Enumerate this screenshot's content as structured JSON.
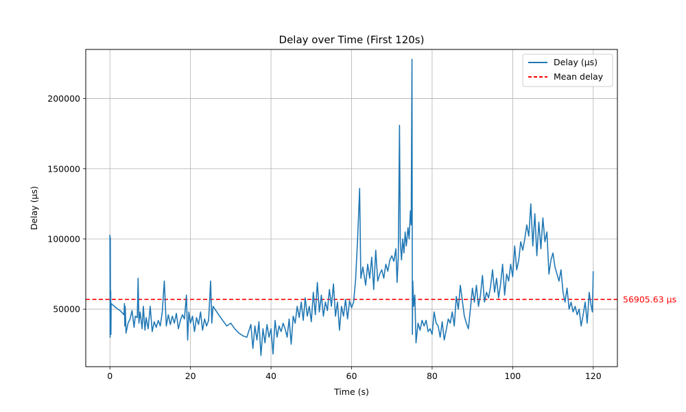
{
  "chart_data": {
    "type": "line",
    "title": "Delay over Time (First 120s)",
    "xlabel": "Time (s)",
    "ylabel": "Delay (µs)",
    "xlim": [
      -6,
      126
    ],
    "ylim": [
      9000,
      235000
    ],
    "x_ticks": [
      0,
      20,
      40,
      60,
      80,
      100,
      120
    ],
    "y_ticks": [
      50000,
      100000,
      150000,
      200000
    ],
    "grid": true,
    "legend": {
      "placement": "top-right",
      "entries": [
        "Delay (µs)",
        "Mean delay"
      ]
    },
    "colors": {
      "series": "#1f77b4",
      "mean": "#ff0000",
      "grid": "#b0b0b0"
    },
    "mean": {
      "value": 56905.63,
      "label": "56905.63 µs"
    },
    "series": [
      {
        "name": "Delay (µs)",
        "points": [
          [
            0.0,
            103000
          ],
          [
            0.05,
            30000
          ],
          [
            0.1,
            101000
          ],
          [
            0.15,
            35000
          ],
          [
            0.2,
            63000
          ],
          [
            0.25,
            32000
          ],
          [
            0.3,
            54000
          ],
          [
            1.5,
            51000
          ],
          [
            2.5,
            49000
          ],
          [
            3.5,
            46000
          ],
          [
            3.6,
            54000
          ],
          [
            3.7,
            38000
          ],
          [
            3.8,
            52000
          ],
          [
            4.0,
            33000
          ],
          [
            4.5,
            40000
          ],
          [
            5.0,
            43000
          ],
          [
            5.5,
            49000
          ],
          [
            6.0,
            37000
          ],
          [
            6.3,
            45000
          ],
          [
            6.8,
            44000
          ],
          [
            7.0,
            72000
          ],
          [
            7.2,
            40000
          ],
          [
            7.5,
            48000
          ],
          [
            8.0,
            36000
          ],
          [
            8.3,
            52000
          ],
          [
            8.7,
            35000
          ],
          [
            9.0,
            44000
          ],
          [
            9.5,
            36000
          ],
          [
            10.0,
            52000
          ],
          [
            10.5,
            34000
          ],
          [
            11.0,
            41000
          ],
          [
            11.5,
            37000
          ],
          [
            12.0,
            42000
          ],
          [
            12.5,
            38000
          ],
          [
            13.0,
            48000
          ],
          [
            13.5,
            70000
          ],
          [
            14.0,
            38000
          ],
          [
            14.5,
            46000
          ],
          [
            15.0,
            39000
          ],
          [
            15.5,
            45000
          ],
          [
            16.0,
            40000
          ],
          [
            16.5,
            47000
          ],
          [
            17.0,
            36000
          ],
          [
            17.5,
            42000
          ],
          [
            18.0,
            46000
          ],
          [
            18.5,
            43000
          ],
          [
            19.0,
            60000
          ],
          [
            19.3,
            28000
          ],
          [
            19.6,
            48000
          ],
          [
            20.0,
            40000
          ],
          [
            20.5,
            45000
          ],
          [
            21.0,
            34000
          ],
          [
            21.5,
            44000
          ],
          [
            22.0,
            39000
          ],
          [
            22.5,
            48000
          ],
          [
            23.0,
            35000
          ],
          [
            23.5,
            43000
          ],
          [
            24.0,
            38000
          ],
          [
            24.5,
            42000
          ],
          [
            25.0,
            70000
          ],
          [
            25.3,
            40000
          ],
          [
            25.6,
            52000
          ],
          [
            27.0,
            46000
          ],
          [
            28.0,
            42000
          ],
          [
            29.0,
            38000
          ],
          [
            30.0,
            40000
          ],
          [
            31.0,
            36000
          ],
          [
            32.0,
            33000
          ],
          [
            33.0,
            31000
          ],
          [
            34.0,
            30000
          ],
          [
            35.0,
            39000
          ],
          [
            35.5,
            22000
          ],
          [
            36.0,
            38000
          ],
          [
            36.5,
            28000
          ],
          [
            37.0,
            41000
          ],
          [
            37.5,
            17000
          ],
          [
            38.0,
            36000
          ],
          [
            38.5,
            26000
          ],
          [
            39.0,
            39000
          ],
          [
            39.5,
            30000
          ],
          [
            40.0,
            36000
          ],
          [
            40.5,
            18000
          ],
          [
            41.0,
            42000
          ],
          [
            41.5,
            30000
          ],
          [
            42.0,
            38000
          ],
          [
            42.5,
            34000
          ],
          [
            43.0,
            40000
          ],
          [
            43.5,
            36000
          ],
          [
            44.0,
            30000
          ],
          [
            44.5,
            43000
          ],
          [
            45.0,
            25000
          ],
          [
            45.5,
            45000
          ],
          [
            46.0,
            40000
          ],
          [
            46.5,
            52000
          ],
          [
            47.0,
            44000
          ],
          [
            47.5,
            55000
          ],
          [
            48.0,
            42000
          ],
          [
            48.5,
            58000
          ],
          [
            49.0,
            45000
          ],
          [
            49.5,
            52000
          ],
          [
            50.0,
            41000
          ],
          [
            50.5,
            62000
          ],
          [
            51.0,
            46000
          ],
          [
            51.5,
            69000
          ],
          [
            52.0,
            48000
          ],
          [
            52.5,
            60000
          ],
          [
            53.0,
            45000
          ],
          [
            53.5,
            55000
          ],
          [
            54.0,
            49000
          ],
          [
            54.5,
            64000
          ],
          [
            55.0,
            52000
          ],
          [
            55.5,
            68000
          ],
          [
            56.0,
            45000
          ],
          [
            56.5,
            55000
          ],
          [
            57.0,
            35000
          ],
          [
            57.5,
            52000
          ],
          [
            58.0,
            45000
          ],
          [
            58.5,
            57000
          ],
          [
            59.0,
            43000
          ],
          [
            59.5,
            56000
          ],
          [
            60.0,
            51000
          ],
          [
            60.5,
            55000
          ],
          [
            61.0,
            71000
          ],
          [
            61.5,
            100000
          ],
          [
            62.0,
            136000
          ],
          [
            62.3,
            72000
          ],
          [
            62.8,
            80000
          ],
          [
            63.5,
            67000
          ],
          [
            64.0,
            82000
          ],
          [
            64.5,
            72000
          ],
          [
            65.0,
            87000
          ],
          [
            65.5,
            64000
          ],
          [
            66.0,
            92000
          ],
          [
            66.5,
            70000
          ],
          [
            67.0,
            75000
          ],
          [
            67.5,
            78000
          ],
          [
            68.0,
            72000
          ],
          [
            68.5,
            82000
          ],
          [
            69.0,
            77000
          ],
          [
            69.5,
            85000
          ],
          [
            70.0,
            88000
          ],
          [
            70.5,
            84000
          ],
          [
            71.0,
            93000
          ],
          [
            71.3,
            69000
          ],
          [
            71.6,
            87000
          ],
          [
            71.9,
            181000
          ],
          [
            72.1,
            98000
          ],
          [
            72.4,
            85000
          ],
          [
            72.7,
            100000
          ],
          [
            73.0,
            90000
          ],
          [
            73.3,
            105000
          ],
          [
            73.6,
            95000
          ],
          [
            74.0,
            108000
          ],
          [
            74.3,
            100000
          ],
          [
            74.6,
            120000
          ],
          [
            74.8,
            110000
          ],
          [
            75.0,
            228000
          ],
          [
            75.1,
            32000
          ],
          [
            75.2,
            70000
          ],
          [
            75.4,
            52000
          ],
          [
            75.7,
            60000
          ],
          [
            76.0,
            26000
          ],
          [
            76.5,
            40000
          ],
          [
            77.0,
            35000
          ],
          [
            77.5,
            42000
          ],
          [
            78.0,
            38000
          ],
          [
            78.5,
            42000
          ],
          [
            79.0,
            34000
          ],
          [
            79.5,
            36000
          ],
          [
            80.0,
            32000
          ],
          [
            80.5,
            48000
          ],
          [
            81.0,
            40000
          ],
          [
            81.5,
            38000
          ],
          [
            82.0,
            30000
          ],
          [
            82.5,
            41000
          ],
          [
            83.0,
            28000
          ],
          [
            83.5,
            35000
          ],
          [
            84.0,
            43000
          ],
          [
            84.5,
            40000
          ],
          [
            85.0,
            48000
          ],
          [
            85.5,
            38000
          ],
          [
            86.0,
            59000
          ],
          [
            86.5,
            50000
          ],
          [
            87.0,
            67000
          ],
          [
            87.5,
            56000
          ],
          [
            88.0,
            45000
          ],
          [
            88.5,
            40000
          ],
          [
            89.0,
            36000
          ],
          [
            89.5,
            50000
          ],
          [
            90.0,
            65000
          ],
          [
            90.5,
            55000
          ],
          [
            91.0,
            67000
          ],
          [
            91.5,
            52000
          ],
          [
            92.0,
            60000
          ],
          [
            92.5,
            74000
          ],
          [
            93.0,
            55000
          ],
          [
            93.5,
            62000
          ],
          [
            94.0,
            58000
          ],
          [
            94.5,
            66000
          ],
          [
            95.0,
            78000
          ],
          [
            95.5,
            62000
          ],
          [
            96.0,
            72000
          ],
          [
            96.5,
            58000
          ],
          [
            97.0,
            68000
          ],
          [
            97.5,
            82000
          ],
          [
            98.0,
            60000
          ],
          [
            98.5,
            75000
          ],
          [
            99.0,
            70000
          ],
          [
            99.5,
            82000
          ],
          [
            100.0,
            73000
          ],
          [
            100.5,
            95000
          ],
          [
            101.0,
            78000
          ],
          [
            101.5,
            85000
          ],
          [
            102.0,
            98000
          ],
          [
            102.5,
            92000
          ],
          [
            103.0,
            100000
          ],
          [
            103.5,
            110000
          ],
          [
            104.0,
            102000
          ],
          [
            104.5,
            125000
          ],
          [
            105.0,
            95000
          ],
          [
            105.5,
            118000
          ],
          [
            106.0,
            88000
          ],
          [
            106.5,
            112000
          ],
          [
            107.0,
            93000
          ],
          [
            107.5,
            115000
          ],
          [
            108.0,
            98000
          ],
          [
            108.5,
            105000
          ],
          [
            109.0,
            75000
          ],
          [
            109.5,
            85000
          ],
          [
            110.0,
            90000
          ],
          [
            110.5,
            80000
          ],
          [
            111.0,
            75000
          ],
          [
            111.5,
            70000
          ],
          [
            112.0,
            78000
          ],
          [
            112.5,
            62000
          ],
          [
            113.0,
            55000
          ],
          [
            113.5,
            65000
          ],
          [
            114.0,
            50000
          ],
          [
            114.5,
            55000
          ],
          [
            115.0,
            48000
          ],
          [
            115.5,
            52000
          ],
          [
            116.0,
            46000
          ],
          [
            116.5,
            50000
          ],
          [
            117.0,
            38000
          ],
          [
            117.5,
            46000
          ],
          [
            118.0,
            55000
          ],
          [
            118.5,
            40000
          ],
          [
            119.0,
            62000
          ],
          [
            119.5,
            52000
          ],
          [
            119.8,
            48000
          ],
          [
            120.0,
            77000
          ]
        ]
      }
    ]
  }
}
